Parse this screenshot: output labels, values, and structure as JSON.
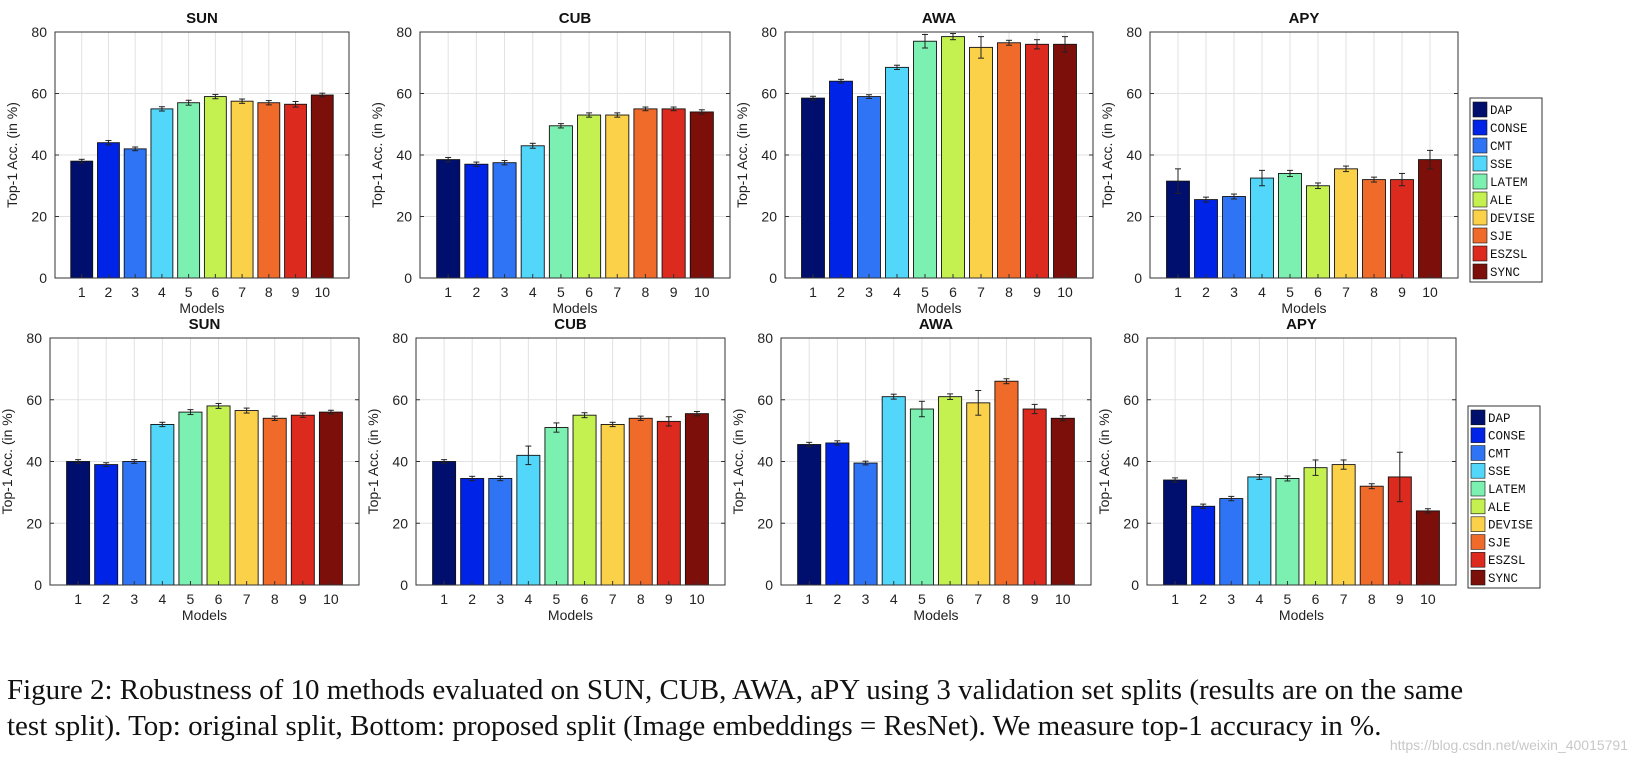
{
  "caption": {
    "line1": "Figure 2: Robustness of 10 methods evaluated on SUN, CUB, AWA, aPY using 3 validation set splits (results are on the same",
    "line2": "test split). Top: original split, Bottom: proposed split (Image embeddings = ResNet). We measure top-1 accuracy in %."
  },
  "watermark": "https://blog.csdn.net/weixin_40015791",
  "legend_entries": [
    "DAP",
    "CONSE",
    "CMT",
    "SSE",
    "LATEM",
    "ALE",
    "DEVISE",
    "SJE",
    "ESZSL",
    "SYNC"
  ],
  "bar_colors": [
    "#000f6e",
    "#0023e8",
    "#2e74f4",
    "#52d6fa",
    "#7cf0b0",
    "#c4f050",
    "#fbd14a",
    "#f06a2a",
    "#dc2a1e",
    "#7c0f0a"
  ],
  "chart_data": [
    {
      "type": "bar",
      "row": "top",
      "title": "SUN",
      "xlabel": "Models",
      "ylabel": "Top-1 Acc. (in %)",
      "ylim": [
        0,
        80
      ],
      "yticks": [
        0,
        20,
        40,
        60,
        80
      ],
      "grid": true,
      "categories": [
        "1",
        "2",
        "3",
        "4",
        "5",
        "6",
        "7",
        "8",
        "9",
        "10"
      ],
      "values": [
        38,
        44,
        42,
        55,
        57,
        59,
        57.5,
        57,
        56.5,
        59.5
      ],
      "errors": [
        0.6,
        0.7,
        0.6,
        0.7,
        0.8,
        0.7,
        0.7,
        0.7,
        0.9,
        0.6
      ]
    },
    {
      "type": "bar",
      "row": "top",
      "title": "CUB",
      "xlabel": "Models",
      "ylabel": "Top-1 Acc. (in %)",
      "ylim": [
        0,
        80
      ],
      "yticks": [
        0,
        20,
        40,
        60,
        80
      ],
      "grid": true,
      "categories": [
        "1",
        "2",
        "3",
        "4",
        "5",
        "6",
        "7",
        "8",
        "9",
        "10"
      ],
      "values": [
        38.5,
        37,
        37.5,
        43,
        49.5,
        53,
        53,
        55,
        55,
        54
      ],
      "errors": [
        0.7,
        0.7,
        0.7,
        0.8,
        0.7,
        0.7,
        0.7,
        0.6,
        0.6,
        0.7
      ]
    },
    {
      "type": "bar",
      "row": "top",
      "title": "AWA",
      "xlabel": "Models",
      "ylabel": "Top-1 Acc. (in %)",
      "ylim": [
        0,
        80
      ],
      "yticks": [
        0,
        20,
        40,
        60,
        80
      ],
      "grid": true,
      "categories": [
        "1",
        "2",
        "3",
        "4",
        "5",
        "6",
        "7",
        "8",
        "9",
        "10"
      ],
      "values": [
        58.5,
        64,
        59,
        68.5,
        77,
        78.5,
        75,
        76.5,
        76,
        76
      ],
      "errors": [
        0.6,
        0.6,
        0.6,
        0.7,
        2.2,
        1,
        3.5,
        0.8,
        1.5,
        2.5
      ]
    },
    {
      "type": "bar",
      "row": "top",
      "title": "APY",
      "xlabel": "Models",
      "ylabel": "Top-1 Acc. (in %)",
      "ylim": [
        0,
        80
      ],
      "yticks": [
        0,
        20,
        40,
        60,
        80
      ],
      "grid": true,
      "legend": "right",
      "categories": [
        "1",
        "2",
        "3",
        "4",
        "5",
        "6",
        "7",
        "8",
        "9",
        "10"
      ],
      "values": [
        31.5,
        25.5,
        26.5,
        32.5,
        34,
        30,
        35.5,
        32,
        32,
        38.5
      ],
      "errors": [
        4,
        0.8,
        0.8,
        2.5,
        1,
        0.9,
        0.9,
        0.8,
        2,
        3
      ]
    },
    {
      "type": "bar",
      "row": "bottom",
      "title": "SUN",
      "xlabel": "Models",
      "ylabel": "Top-1 Acc. (in %)",
      "ylim": [
        0,
        80
      ],
      "yticks": [
        0,
        20,
        40,
        60,
        80
      ],
      "grid": true,
      "categories": [
        "1",
        "2",
        "3",
        "4",
        "5",
        "6",
        "7",
        "8",
        "9",
        "10"
      ],
      "values": [
        40,
        39,
        40,
        52,
        56,
        58,
        56.5,
        54,
        55,
        56
      ],
      "errors": [
        0.6,
        0.6,
        0.6,
        0.7,
        0.8,
        0.8,
        0.8,
        0.7,
        0.7,
        0.6
      ]
    },
    {
      "type": "bar",
      "row": "bottom",
      "title": "CUB",
      "xlabel": "Models",
      "ylabel": "Top-1 Acc. (in %)",
      "ylim": [
        0,
        80
      ],
      "yticks": [
        0,
        20,
        40,
        60,
        80
      ],
      "grid": true,
      "categories": [
        "1",
        "2",
        "3",
        "4",
        "5",
        "6",
        "7",
        "8",
        "9",
        "10"
      ],
      "values": [
        40,
        34.5,
        34.5,
        42,
        51,
        55,
        52,
        54,
        53,
        55.5
      ],
      "errors": [
        0.6,
        0.7,
        0.7,
        3,
        1.5,
        0.8,
        0.7,
        0.7,
        1.5,
        0.7
      ]
    },
    {
      "type": "bar",
      "row": "bottom",
      "title": "AWA",
      "xlabel": "Models",
      "ylabel": "Top-1 Acc. (in %)",
      "ylim": [
        0,
        80
      ],
      "yticks": [
        0,
        20,
        40,
        60,
        80
      ],
      "grid": true,
      "categories": [
        "1",
        "2",
        "3",
        "4",
        "5",
        "6",
        "7",
        "8",
        "9",
        "10"
      ],
      "values": [
        45.5,
        46,
        39.5,
        61,
        57,
        61,
        59,
        66,
        57,
        54
      ],
      "errors": [
        0.7,
        0.7,
        0.6,
        0.8,
        2.5,
        0.9,
        4,
        0.8,
        1.5,
        0.8
      ]
    },
    {
      "type": "bar",
      "row": "bottom",
      "title": "APY",
      "xlabel": "Models",
      "ylabel": "Top-1 Acc. (in %)",
      "ylim": [
        0,
        80
      ],
      "yticks": [
        0,
        20,
        40,
        60,
        80
      ],
      "grid": true,
      "legend": "right",
      "categories": [
        "1",
        "2",
        "3",
        "4",
        "5",
        "6",
        "7",
        "8",
        "9",
        "10"
      ],
      "values": [
        34,
        25.5,
        28,
        35,
        34.5,
        38,
        39,
        32,
        35,
        24
      ],
      "errors": [
        0.7,
        0.7,
        0.7,
        0.8,
        0.8,
        2.5,
        1.5,
        0.8,
        8,
        0.7
      ]
    }
  ]
}
